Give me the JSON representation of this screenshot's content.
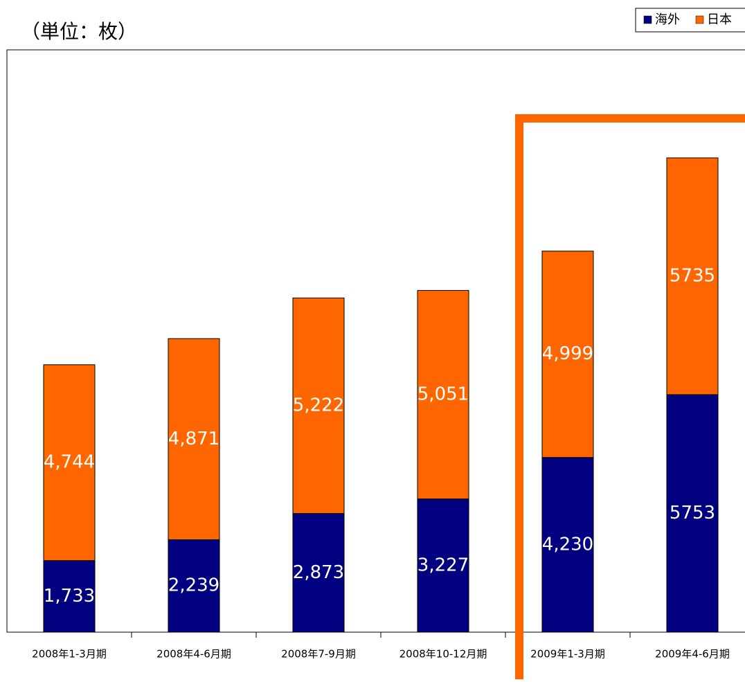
{
  "chart_data": {
    "type": "stacked_bar",
    "unit_label": "（単位：枚）",
    "categories": [
      "2008年1-3月期",
      "2008年4-6月期",
      "2008年7-9月期",
      "2008年10-12月期",
      "2009年1-3月期",
      "2009年4-6月期"
    ],
    "series": [
      {
        "name": "海外",
        "color": "#000080",
        "values": [
          1733,
          2239,
          2873,
          3227,
          4230,
          5753
        ],
        "value_labels": [
          "1,733",
          "2,239",
          "2,873",
          "3,227",
          "4,230",
          "5753"
        ]
      },
      {
        "name": "日本",
        "color": "#ff6600",
        "values": [
          4744,
          4871,
          5222,
          5051,
          4999,
          5735
        ],
        "value_labels": [
          "4,744",
          "4,871",
          "5,222",
          "5,051",
          "4,999",
          "5735"
        ]
      }
    ]
  }
}
